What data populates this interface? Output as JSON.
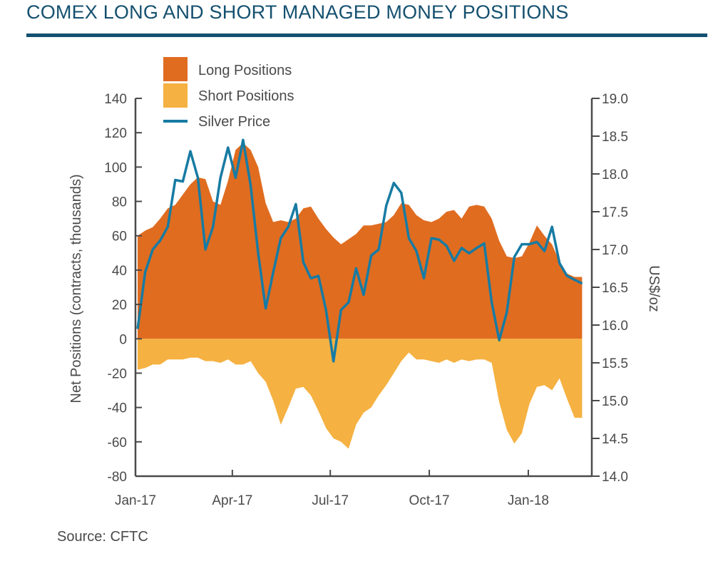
{
  "title": "COMEX LONG AND SHORT MANAGED MONEY POSITIONS",
  "source": "Source: CFTC",
  "chart_data": {
    "type": "area",
    "ylabel": "Net Positions (contracts, thousands)",
    "y2label": "US$/oz",
    "ylim": [
      -80,
      140
    ],
    "y2lim": [
      14.0,
      19.0
    ],
    "y_ticks": [
      140,
      120,
      100,
      80,
      60,
      40,
      20,
      0,
      -20,
      -40,
      -60,
      -80
    ],
    "y_tick_labels": [
      "140",
      "120",
      "100",
      "80",
      "60",
      "40",
      "20",
      "0",
      "-20",
      "-40",
      "-60",
      "-80"
    ],
    "y2_ticks": [
      19.0,
      18.5,
      18.0,
      17.5,
      17.0,
      16.5,
      16.0,
      15.5,
      15.0,
      14.5,
      14.0
    ],
    "y2_tick_labels": [
      "19.0",
      "18.5",
      "18.0",
      "17.5",
      "17.0",
      "16.5",
      "16.0",
      "15.5",
      "15.0",
      "14.5",
      "14.0"
    ],
    "x_tick_labels": [
      "Jan-17",
      "Apr-17",
      "Jul-17",
      "Oct-17",
      "Jan-18"
    ],
    "x_tick_dates": [
      "2017-01-01",
      "2017-04-01",
      "2017-07-01",
      "2017-10-01",
      "2018-01-01"
    ],
    "x_range": [
      "2017-01-01",
      "2018-03-01"
    ],
    "legend_position": "top-left",
    "colors": {
      "long": "#e06c20",
      "short": "#f5b141",
      "price": "#177ba3",
      "axis": "#4a4a4a",
      "title": "#14506f"
    },
    "series": [
      {
        "name": "Long Positions",
        "kind": "area",
        "x": [
          "2017-01-03",
          "2017-01-10",
          "2017-01-17",
          "2017-01-24",
          "2017-01-31",
          "2017-02-07",
          "2017-02-14",
          "2017-02-21",
          "2017-02-28",
          "2017-03-07",
          "2017-03-14",
          "2017-03-21",
          "2017-03-28",
          "2017-04-04",
          "2017-04-11",
          "2017-04-18",
          "2017-04-25",
          "2017-05-02",
          "2017-05-09",
          "2017-05-16",
          "2017-05-23",
          "2017-05-30",
          "2017-06-06",
          "2017-06-13",
          "2017-06-20",
          "2017-06-27",
          "2017-07-04",
          "2017-07-11",
          "2017-07-18",
          "2017-07-25",
          "2017-08-01",
          "2017-08-08",
          "2017-08-15",
          "2017-08-22",
          "2017-08-29",
          "2017-09-05",
          "2017-09-12",
          "2017-09-19",
          "2017-09-26",
          "2017-10-03",
          "2017-10-10",
          "2017-10-17",
          "2017-10-24",
          "2017-10-31",
          "2017-11-07",
          "2017-11-14",
          "2017-11-21",
          "2017-11-28",
          "2017-12-05",
          "2017-12-12",
          "2017-12-19",
          "2017-12-26",
          "2018-01-02",
          "2018-01-09",
          "2018-01-16",
          "2018-01-23",
          "2018-01-30",
          "2018-02-06",
          "2018-02-13",
          "2018-02-20"
        ],
        "values": [
          60,
          63,
          65,
          70,
          76,
          78,
          84,
          90,
          94,
          93,
          80,
          78,
          92,
          110,
          114,
          110,
          100,
          79,
          68,
          69,
          68,
          70,
          76,
          77,
          70,
          64,
          59,
          55,
          58,
          61,
          66,
          66,
          67,
          68,
          72,
          79,
          78,
          72,
          69,
          68,
          70,
          74,
          75,
          70,
          77,
          78,
          77,
          70,
          57,
          48,
          47,
          48,
          56,
          66,
          60,
          55,
          45,
          38,
          36,
          36
        ]
      },
      {
        "name": "Short Positions",
        "kind": "area",
        "x": [
          "2017-01-03",
          "2017-01-10",
          "2017-01-17",
          "2017-01-24",
          "2017-01-31",
          "2017-02-07",
          "2017-02-14",
          "2017-02-21",
          "2017-02-28",
          "2017-03-07",
          "2017-03-14",
          "2017-03-21",
          "2017-03-28",
          "2017-04-04",
          "2017-04-11",
          "2017-04-18",
          "2017-04-25",
          "2017-05-02",
          "2017-05-09",
          "2017-05-16",
          "2017-05-23",
          "2017-05-30",
          "2017-06-06",
          "2017-06-13",
          "2017-06-20",
          "2017-06-27",
          "2017-07-04",
          "2017-07-11",
          "2017-07-18",
          "2017-07-25",
          "2017-08-01",
          "2017-08-08",
          "2017-08-15",
          "2017-08-22",
          "2017-08-29",
          "2017-09-05",
          "2017-09-12",
          "2017-09-19",
          "2017-09-26",
          "2017-10-03",
          "2017-10-10",
          "2017-10-17",
          "2017-10-24",
          "2017-10-31",
          "2017-11-07",
          "2017-11-14",
          "2017-11-21",
          "2017-11-28",
          "2017-12-05",
          "2017-12-12",
          "2017-12-19",
          "2017-12-26",
          "2018-01-02",
          "2018-01-09",
          "2018-01-16",
          "2018-01-23",
          "2018-01-30",
          "2018-02-06",
          "2018-02-13",
          "2018-02-20"
        ],
        "values": [
          -18,
          -17,
          -15,
          -15,
          -12,
          -12,
          -12,
          -11,
          -11,
          -13,
          -13,
          -14,
          -12,
          -15,
          -15,
          -13,
          -20,
          -25,
          -36,
          -50,
          -40,
          -29,
          -28,
          -33,
          -42,
          -52,
          -58,
          -60,
          -64,
          -50,
          -43,
          -40,
          -33,
          -27,
          -20,
          -13,
          -8,
          -12,
          -12,
          -13,
          -14,
          -12,
          -14,
          -12,
          -13,
          -12,
          -12,
          -14,
          -37,
          -53,
          -61,
          -55,
          -38,
          -28,
          -27,
          -30,
          -23,
          -35,
          -46,
          -46
        ]
      },
      {
        "name": "Silver Price",
        "kind": "line",
        "axis": "right",
        "x": [
          "2017-01-03",
          "2017-01-10",
          "2017-01-17",
          "2017-01-24",
          "2017-01-31",
          "2017-02-07",
          "2017-02-14",
          "2017-02-21",
          "2017-02-28",
          "2017-03-07",
          "2017-03-14",
          "2017-03-21",
          "2017-03-28",
          "2017-04-04",
          "2017-04-11",
          "2017-04-18",
          "2017-04-25",
          "2017-05-02",
          "2017-05-09",
          "2017-05-16",
          "2017-05-23",
          "2017-05-30",
          "2017-06-06",
          "2017-06-13",
          "2017-06-20",
          "2017-06-27",
          "2017-07-04",
          "2017-07-11",
          "2017-07-18",
          "2017-07-25",
          "2017-08-01",
          "2017-08-08",
          "2017-08-15",
          "2017-08-22",
          "2017-08-29",
          "2017-09-05",
          "2017-09-12",
          "2017-09-19",
          "2017-09-26",
          "2017-10-03",
          "2017-10-10",
          "2017-10-17",
          "2017-10-24",
          "2017-10-31",
          "2017-11-07",
          "2017-11-14",
          "2017-11-21",
          "2017-11-28",
          "2017-12-05",
          "2017-12-12",
          "2017-12-19",
          "2017-12-26",
          "2018-01-02",
          "2018-01-09",
          "2018-01-16",
          "2018-01-23",
          "2018-01-30",
          "2018-02-06",
          "2018-02-13",
          "2018-02-20"
        ],
        "values": [
          15.95,
          16.7,
          17.0,
          17.12,
          17.3,
          17.92,
          17.9,
          18.3,
          17.95,
          17.0,
          17.3,
          17.95,
          18.35,
          17.95,
          18.45,
          17.85,
          16.95,
          16.22,
          16.7,
          17.15,
          17.3,
          17.6,
          16.83,
          16.62,
          16.65,
          16.2,
          15.52,
          16.2,
          16.3,
          16.75,
          16.4,
          16.92,
          17.0,
          17.58,
          17.88,
          17.75,
          17.15,
          16.98,
          16.62,
          17.15,
          17.13,
          17.05,
          16.85,
          17.02,
          16.95,
          17.02,
          17.08,
          16.3,
          15.8,
          16.17,
          16.9,
          17.07,
          17.07,
          17.1,
          16.98,
          17.3,
          16.82,
          16.65,
          16.6,
          16.55
        ]
      }
    ]
  }
}
